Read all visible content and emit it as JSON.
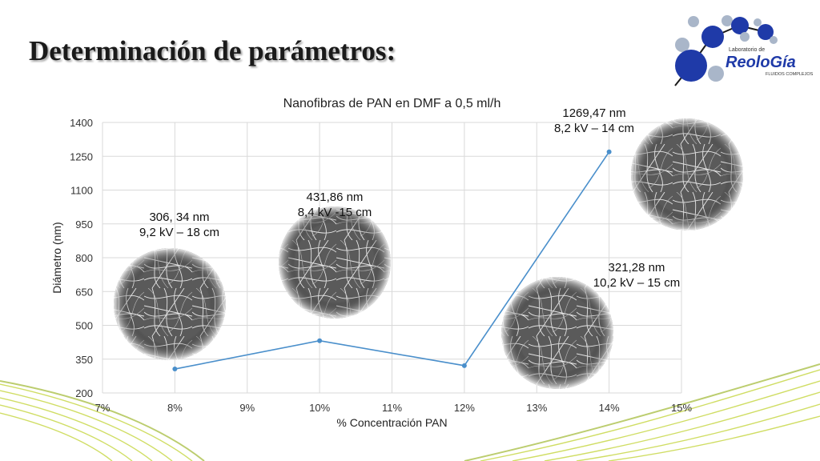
{
  "slide": {
    "title": "Determinación de parámetros:"
  },
  "logo": {
    "line1": "Laboratorio de",
    "brand": "ReoloGía",
    "tagline": "FLUIDOS COMPLEJOS"
  },
  "chart_data": {
    "type": "line",
    "title": "Nanofibras de PAN en DMF a 0,5 ml/h",
    "xlabel": "% Concentración PAN",
    "ylabel": "Diámetro (nm)",
    "xlim": [
      7,
      15
    ],
    "ylim": [
      200,
      1400
    ],
    "x_ticks": [
      "7%",
      "8%",
      "9%",
      "10%",
      "11%",
      "12%",
      "13%",
      "14%",
      "15%"
    ],
    "y_ticks": [
      "200",
      "350",
      "500",
      "650",
      "800",
      "950",
      "1100",
      "1250",
      "1400"
    ],
    "grid": true,
    "series": [
      {
        "x": [
          8,
          10,
          12,
          14
        ],
        "y": [
          306.34,
          431.86,
          321.28,
          1269.47
        ],
        "color": "#4a8fcb"
      }
    ],
    "annotations": [
      {
        "lines": [
          "306, 34 nm",
          "9,2 kV – 18 cm"
        ]
      },
      {
        "lines": [
          "431,86 nm",
          "8,4 kV -15 cm"
        ]
      },
      {
        "lines": [
          "321,28 nm",
          "10,2 kV – 15 cm"
        ]
      },
      {
        "lines": [
          "1269,47 nm",
          "8,2 kV – 14 cm"
        ]
      }
    ],
    "micrographs": [
      "sem-image-8pct",
      "sem-image-10pct",
      "sem-image-12pct",
      "sem-image-14pct"
    ]
  }
}
